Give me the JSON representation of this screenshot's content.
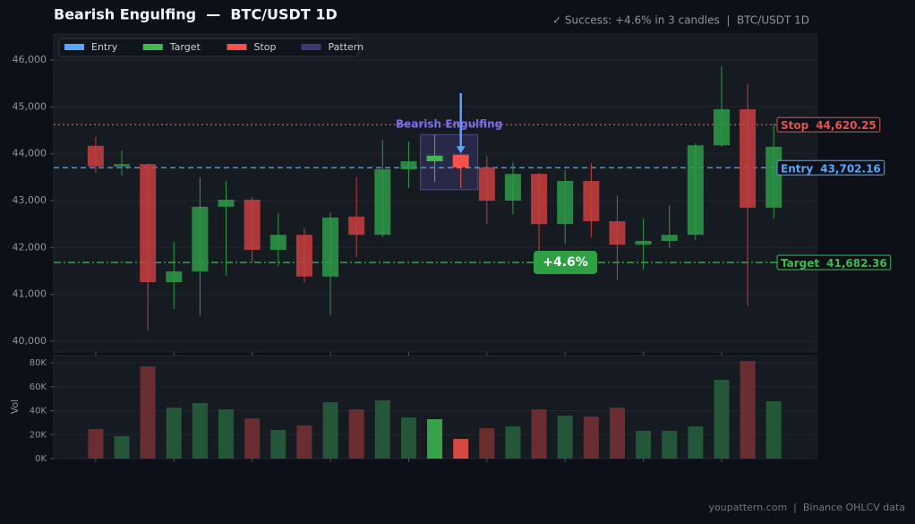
{
  "header": {
    "title": "Bearish Engulfing  —  BTC/USDT 1D",
    "status": "✓ Success: +4.6% in 3 candles  |  BTC/USDT 1D"
  },
  "footer": "youpattern.com  |  Binance OHLCV data",
  "chart_data": [
    {
      "type": "candlestick",
      "open": [
        44170,
        43730,
        43780,
        41260,
        41490,
        42870,
        43020,
        41950,
        42270,
        41380,
        42660,
        42270,
        43670,
        43840,
        43980,
        43710,
        43000,
        43570,
        42500,
        43420,
        42560,
        42060,
        42140,
        42270,
        44180,
        44950,
        42850
      ],
      "high": [
        44360,
        44070,
        43790,
        42120,
        43500,
        43420,
        43080,
        42730,
        42410,
        42750,
        43500,
        44300,
        44260,
        44410,
        43990,
        43950,
        43820,
        43590,
        43650,
        43800,
        43110,
        42620,
        42900,
        44220,
        45870,
        45500,
        44640
      ],
      "low": [
        43590,
        43535,
        40230,
        40690,
        40550,
        41400,
        41680,
        41600,
        41260,
        40550,
        41800,
        42220,
        43270,
        43400,
        43270,
        42500,
        42710,
        41830,
        42080,
        42220,
        41300,
        41530,
        41990,
        42160,
        44150,
        40760,
        42620
      ],
      "close": [
        43730,
        43780,
        41260,
        41490,
        42870,
        43020,
        41950,
        42270,
        41380,
        42640,
        42270,
        43670,
        43840,
        43960,
        43710,
        43000,
        43570,
        42500,
        43420,
        42560,
        42060,
        42140,
        42270,
        44180,
        44950,
        42850,
        44150
      ],
      "up_color": "#2e9a48",
      "down_color": "#c83e3e",
      "xlim": [
        -1.61,
        27.64
      ],
      "xticks": [
        0,
        3,
        6,
        9,
        12,
        15,
        18,
        21,
        24
      ],
      "ylim": [
        39770,
        46555
      ],
      "yticks": [
        {
          "value": 40000,
          "label": "40,000"
        },
        {
          "value": 41000,
          "label": "41,000"
        },
        {
          "value": 42000,
          "label": "42,000"
        },
        {
          "value": 43000,
          "label": "43,000"
        },
        {
          "value": 44000,
          "label": "44,000"
        },
        {
          "value": 45000,
          "label": "45,000"
        },
        {
          "value": 46000,
          "label": "46,000"
        }
      ],
      "grid": true,
      "levels": [
        {
          "name": "Stop",
          "value": 44620.25,
          "value_label": "44,620.25",
          "color": "#e5534b",
          "style": "dotted"
        },
        {
          "name": "Entry",
          "value": 43702.16,
          "value_label": "43,702.16",
          "color": "#58a6ff",
          "style": "dashed"
        },
        {
          "name": "Target",
          "value": 41682.36,
          "value_label": "41,682.36",
          "color": "#3fb950",
          "style": "dashdot"
        }
      ],
      "pattern": {
        "label": "Bearish Engulfing",
        "start": 13,
        "end": 14,
        "color": "#7b6cf0",
        "up_color": "#3fb950",
        "down_color": "#f85149"
      },
      "annotation": "+4.6%",
      "legend_position": "upper left",
      "legend": [
        {
          "name": "Entry",
          "color": "#58a6ff"
        },
        {
          "name": "Target",
          "color": "#3fb950"
        },
        {
          "name": "Stop",
          "color": "#f85149"
        },
        {
          "name": "Pattern",
          "color": "#3b3a78"
        }
      ]
    },
    {
      "type": "bar",
      "ylabel": "Vol",
      "values": [
        24700,
        18700,
        77000,
        42600,
        46400,
        41100,
        33600,
        23900,
        27700,
        47100,
        41100,
        48600,
        34400,
        32900,
        16400,
        25400,
        26900,
        41100,
        35900,
        35100,
        42600,
        23200,
        23200,
        26900,
        65800,
        81500,
        47900
      ],
      "up_color": "#24563a",
      "down_color": "#6a2d31",
      "ylim": [
        0,
        86000
      ],
      "yticks": [
        {
          "value": 0,
          "label": "0K"
        },
        {
          "value": 20000,
          "label": "20K"
        },
        {
          "value": 40000,
          "label": "40K"
        },
        {
          "value": 60000,
          "label": "60K"
        },
        {
          "value": 80000,
          "label": "80K"
        }
      ],
      "grid": true
    }
  ]
}
